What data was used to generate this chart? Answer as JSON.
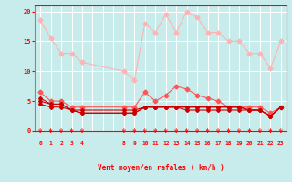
{
  "x_labels": [
    0,
    1,
    2,
    3,
    4,
    "",
    "",
    "",
    8,
    9,
    10,
    11,
    12,
    13,
    14,
    15,
    16,
    17,
    18,
    19,
    20,
    21,
    22,
    23
  ],
  "x_positions": [
    0,
    1,
    2,
    3,
    4,
    5,
    6,
    7,
    8,
    9,
    10,
    11,
    12,
    13,
    14,
    15,
    16,
    17,
    18,
    19,
    20,
    21,
    22,
    23
  ],
  "series_light_pink": {
    "x": [
      0,
      1,
      2,
      3,
      4,
      8,
      9,
      10,
      11,
      12,
      13,
      14,
      15,
      16,
      17,
      18,
      19,
      20,
      21,
      22,
      23
    ],
    "y": [
      18.5,
      15.5,
      13.0,
      13.0,
      11.5,
      10.0,
      8.5,
      18.0,
      16.5,
      19.5,
      16.5,
      20.0,
      19.0,
      16.5,
      16.5,
      15.0,
      15.0,
      13.0,
      13.0,
      10.5,
      15.0
    ]
  },
  "series_medium_red": {
    "x": [
      0,
      1,
      2,
      3,
      4,
      8,
      9,
      10,
      11,
      12,
      13,
      14,
      15,
      16,
      17,
      18,
      19,
      20,
      21,
      22,
      23
    ],
    "y": [
      6.5,
      5.0,
      5.0,
      4.0,
      4.0,
      4.0,
      4.0,
      6.5,
      5.0,
      6.0,
      7.5,
      7.0,
      6.0,
      5.5,
      5.0,
      4.0,
      4.0,
      4.0,
      4.0,
      3.0,
      4.0
    ]
  },
  "series_dark_red1": {
    "x": [
      0,
      1,
      2,
      3,
      4,
      8,
      9,
      10,
      11,
      12,
      13,
      14,
      15,
      16,
      17,
      18,
      19,
      20,
      21,
      22,
      23
    ],
    "y": [
      5.5,
      4.5,
      4.5,
      3.5,
      3.5,
      3.5,
      3.5,
      4.0,
      4.0,
      4.0,
      4.0,
      4.0,
      4.0,
      4.0,
      4.0,
      4.0,
      4.0,
      3.5,
      3.5,
      2.5,
      4.0
    ]
  },
  "series_dark_red2": {
    "x": [
      0,
      1,
      2,
      3,
      4,
      8,
      9,
      10,
      11,
      12,
      13,
      14,
      15,
      16,
      17,
      18,
      19,
      20,
      21,
      22,
      23
    ],
    "y": [
      5.0,
      4.5,
      4.5,
      3.5,
      3.0,
      3.0,
      3.0,
      4.0,
      4.0,
      4.0,
      4.0,
      4.0,
      4.0,
      4.0,
      4.0,
      4.0,
      4.0,
      3.5,
      3.5,
      2.5,
      4.0
    ]
  },
  "series_dark_red3": {
    "x": [
      0,
      1,
      2,
      3,
      4,
      8,
      9,
      10,
      11,
      12,
      13,
      14,
      15,
      16,
      17,
      18,
      19,
      20,
      21,
      22,
      23
    ],
    "y": [
      4.5,
      4.0,
      4.0,
      3.5,
      3.0,
      3.0,
      3.0,
      4.0,
      4.0,
      4.0,
      4.0,
      3.5,
      3.5,
      3.5,
      3.5,
      3.5,
      3.5,
      3.5,
      3.5,
      2.5,
      4.0
    ]
  },
  "color_light_pink": "#FFB3B3",
  "color_medium_red": "#FF5555",
  "color_dark_red": "#CC0000",
  "bg_color": "#C8EBEB",
  "grid_color": "#FFFFFF",
  "xlabel": "Vent moyen/en rafales ( km/h )",
  "ylim": [
    0,
    21
  ],
  "yticks": [
    0,
    5,
    10,
    15,
    20
  ],
  "marker_size": 2.5,
  "linewidth": 0.8
}
